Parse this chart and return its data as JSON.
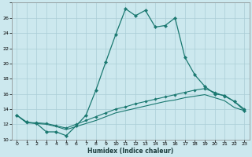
{
  "xlabel": "Humidex (Indice chaleur)",
  "bg_color": "#cce8ee",
  "grid_color": "#aacdd6",
  "line_color": "#1a7870",
  "xlim": [
    -0.5,
    23.5
  ],
  "ylim": [
    10,
    28
  ],
  "xticks": [
    0,
    1,
    2,
    3,
    4,
    5,
    6,
    7,
    8,
    9,
    10,
    11,
    12,
    13,
    14,
    15,
    16,
    17,
    18,
    19,
    20,
    21,
    22,
    23
  ],
  "yticks": [
    10,
    12,
    14,
    16,
    18,
    20,
    22,
    24,
    26,
    28
  ],
  "series1_x": [
    0,
    1,
    2,
    3,
    4,
    5,
    6,
    7,
    8,
    9,
    10,
    11,
    12,
    13,
    14,
    15,
    16,
    17,
    18,
    19,
    20,
    21,
    22,
    23
  ],
  "series1_y": [
    13.2,
    12.3,
    12.1,
    11.0,
    11.0,
    10.5,
    11.8,
    13.2,
    16.5,
    20.2,
    23.8,
    27.2,
    26.3,
    27.0,
    24.8,
    25.0,
    26.0,
    20.8,
    18.5,
    17.0,
    16.0,
    15.8,
    15.0,
    13.8
  ],
  "series2_x": [
    0,
    1,
    2,
    3,
    4,
    5,
    6,
    7,
    8,
    9,
    10,
    11,
    12,
    13,
    14,
    15,
    16,
    17,
    18,
    19,
    20,
    21,
    22,
    23
  ],
  "series2_y": [
    13.2,
    12.2,
    12.2,
    12.1,
    11.8,
    11.5,
    12.0,
    12.5,
    13.0,
    13.5,
    14.0,
    14.3,
    14.7,
    15.0,
    15.3,
    15.6,
    15.9,
    16.2,
    16.5,
    16.7,
    16.2,
    15.7,
    15.0,
    14.0
  ],
  "series3_x": [
    0,
    1,
    2,
    3,
    4,
    5,
    6,
    7,
    8,
    9,
    10,
    11,
    12,
    13,
    14,
    15,
    16,
    17,
    18,
    19,
    20,
    21,
    22,
    23
  ],
  "series3_y": [
    13.2,
    12.2,
    12.1,
    12.0,
    11.7,
    11.3,
    11.7,
    12.1,
    12.5,
    13.0,
    13.5,
    13.8,
    14.1,
    14.4,
    14.7,
    15.0,
    15.2,
    15.5,
    15.7,
    15.9,
    15.5,
    15.1,
    14.2,
    13.8
  ]
}
